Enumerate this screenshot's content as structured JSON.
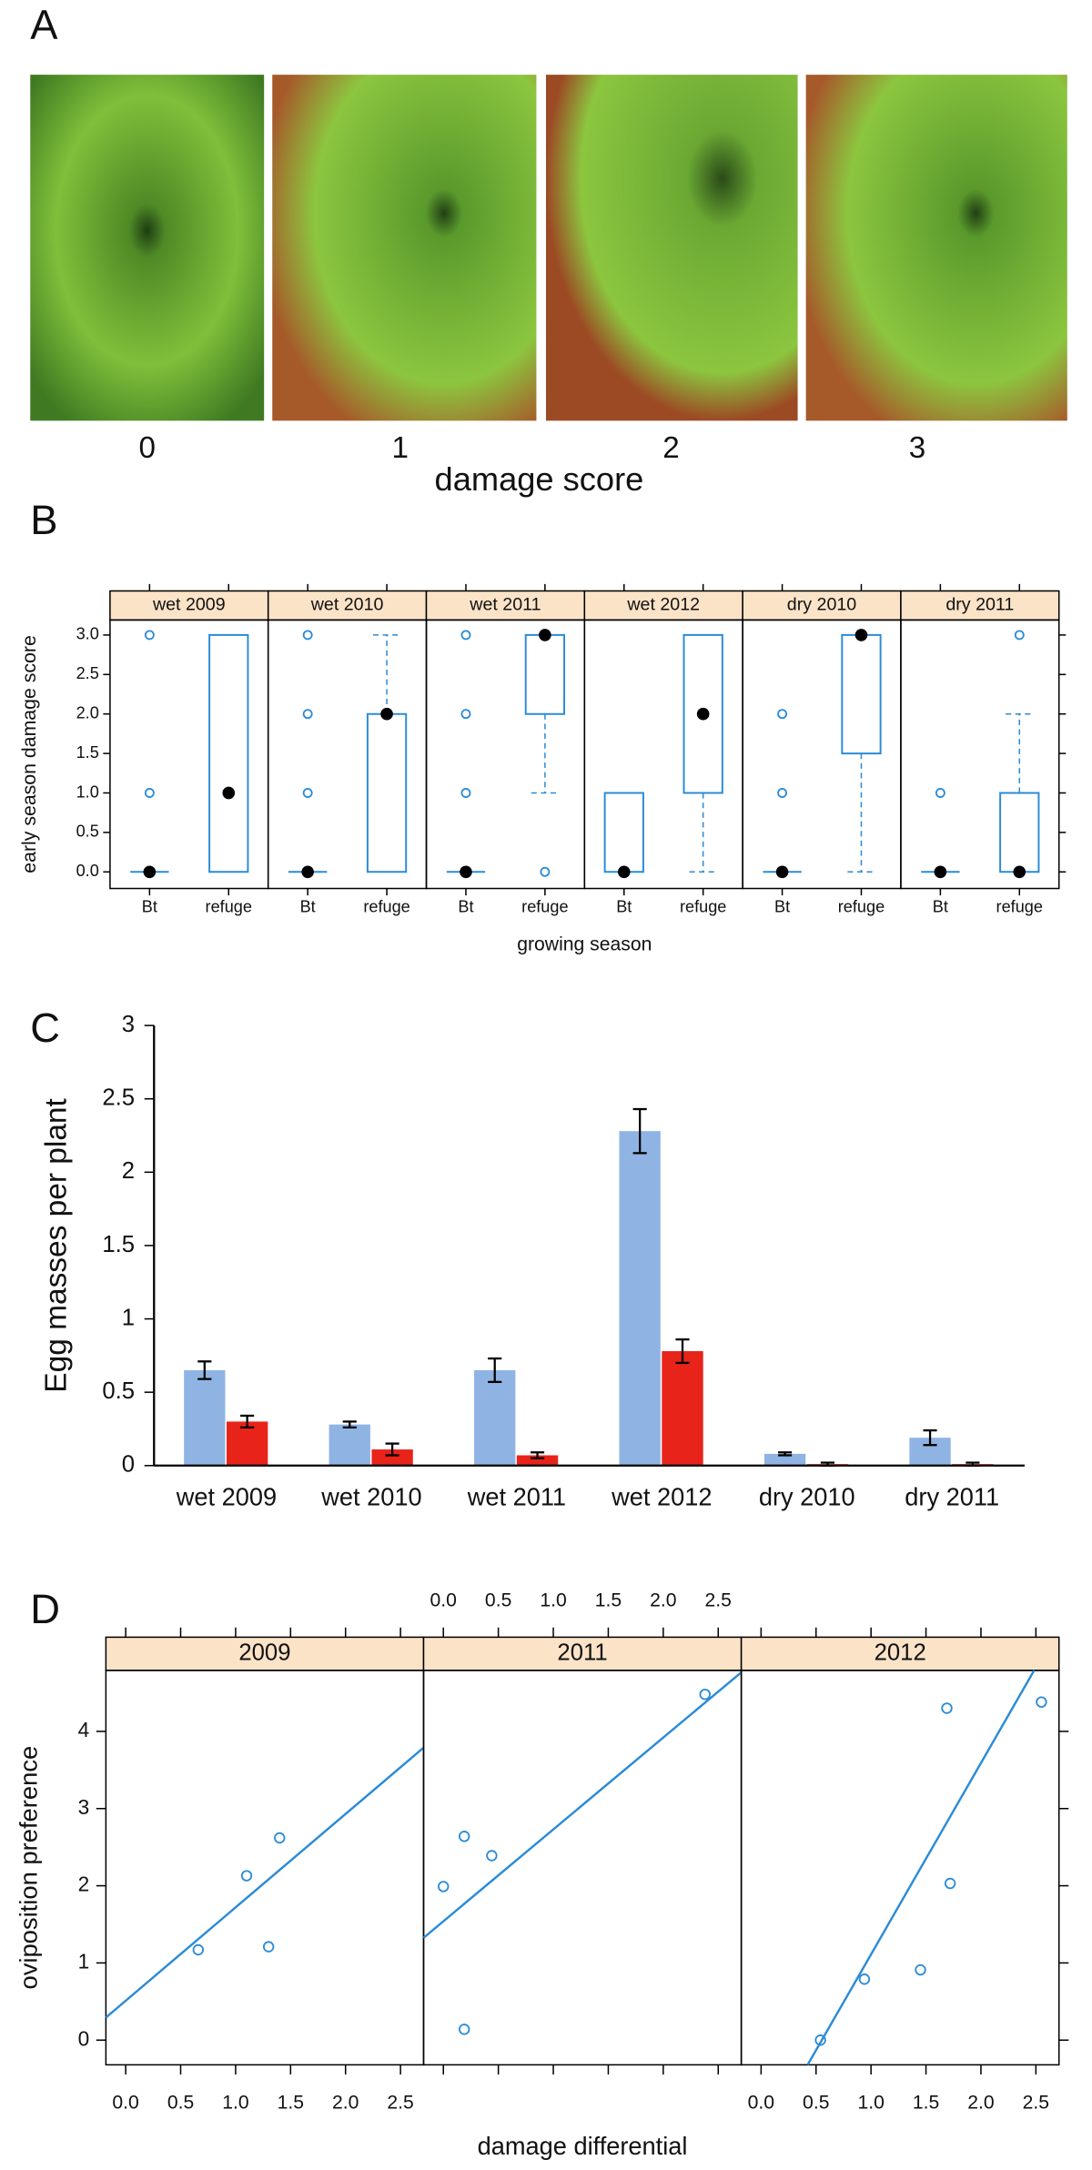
{
  "figure": {
    "panel_label": "A",
    "photo_labels": [
      "0",
      "1",
      "2",
      "3"
    ],
    "xlabel": "damage score"
  },
  "chart_data": [
    {
      "type": "box",
      "panel_label": "B",
      "ylabel": "early season damage score",
      "xlabel": "growing season",
      "color": "#2b8bd6",
      "median_color": "#000000",
      "strip_color": "#fbe3c8",
      "ylim": [
        -0.21,
        3.19
      ],
      "yticks": [
        {
          "value": 0,
          "label": "0.0"
        },
        {
          "value": 0.5,
          "label": "0.5"
        },
        {
          "value": 1,
          "label": "1.0"
        },
        {
          "value": 1.5,
          "label": "1.5"
        },
        {
          "value": 2,
          "label": "2.0"
        },
        {
          "value": 2.5,
          "label": "2.5"
        },
        {
          "value": 3,
          "label": "3.0"
        }
      ],
      "panels": [
        {
          "title": "wet 2009",
          "boxes": [
            {
              "name": "Bt",
              "min": 0,
              "q1": 0,
              "median": 0,
              "q3": 0,
              "max": 0,
              "outliers": [
                1,
                3
              ]
            },
            {
              "name": "refuge",
              "min": 0,
              "q1": 0,
              "median": 1,
              "q3": 3,
              "max": 3,
              "outliers": []
            }
          ]
        },
        {
          "title": "wet 2010",
          "boxes": [
            {
              "name": "Bt",
              "min": 0,
              "q1": 0,
              "median": 0,
              "q3": 0,
              "max": 0,
              "outliers": [
                1,
                2,
                3
              ]
            },
            {
              "name": "refuge",
              "min": 0,
              "q1": 0,
              "median": 2,
              "q3": 2,
              "max": 3,
              "outliers": []
            }
          ]
        },
        {
          "title": "wet 2011",
          "boxes": [
            {
              "name": "Bt",
              "min": 0,
              "q1": 0,
              "median": 0,
              "q3": 0,
              "max": 0,
              "outliers": [
                1,
                2,
                3
              ]
            },
            {
              "name": "refuge",
              "min": 1,
              "q1": 2,
              "median": 3,
              "q3": 3,
              "max": 3,
              "outliers": [
                0
              ]
            }
          ]
        },
        {
          "title": "wet 2012",
          "boxes": [
            {
              "name": "Bt",
              "min": 0,
              "q1": 0,
              "median": 0,
              "q3": 1,
              "max": 1,
              "outliers": []
            },
            {
              "name": "refuge",
              "min": 0,
              "q1": 1,
              "median": 2,
              "q3": 3,
              "max": 3,
              "outliers": []
            }
          ]
        },
        {
          "title": "dry 2010",
          "boxes": [
            {
              "name": "Bt",
              "min": 0,
              "q1": 0,
              "median": 0,
              "q3": 0,
              "max": 0,
              "outliers": [
                1,
                2
              ]
            },
            {
              "name": "refuge",
              "min": 0,
              "q1": 1.5,
              "median": 3,
              "q3": 3,
              "max": 3,
              "outliers": []
            }
          ]
        },
        {
          "title": "dry 2011",
          "boxes": [
            {
              "name": "Bt",
              "min": 0,
              "q1": 0,
              "median": 0,
              "q3": 0,
              "max": 0,
              "outliers": [
                1
              ]
            },
            {
              "name": "refuge",
              "min": 0,
              "q1": 0,
              "median": 0,
              "q3": 1,
              "max": 2,
              "outliers": [
                3
              ]
            }
          ]
        }
      ]
    },
    {
      "type": "bar",
      "panel_label": "C",
      "ylabel": "Egg masses per plant",
      "categories": [
        "wet 2009",
        "wet 2010",
        "wet 2011",
        "wet 2012",
        "dry 2010",
        "dry 2011"
      ],
      "series": [
        {
          "color": "#8fb4e4",
          "values": [
            0.65,
            0.28,
            0.65,
            2.28,
            0.08,
            0.19
          ],
          "errors": [
            0.06,
            0.02,
            0.08,
            0.15,
            0.01,
            0.05
          ]
        },
        {
          "color": "#e8231a",
          "values": [
            0.3,
            0.11,
            0.07,
            0.78,
            0.01,
            0.01
          ],
          "errors": [
            0.04,
            0.04,
            0.02,
            0.08,
            0.01,
            0.01
          ]
        }
      ],
      "ylim": [
        0,
        3
      ],
      "yticks": [
        0,
        0.5,
        1,
        1.5,
        2,
        2.5,
        3
      ]
    },
    {
      "type": "scatter",
      "panel_label": "D",
      "ylabel": "oviposition preference",
      "xlabel": "damage differential",
      "color": "#2b8bd6",
      "strip_color": "#fbe3c8",
      "xlim": [
        -0.18,
        2.71
      ],
      "ylim": [
        -0.32,
        4.79
      ],
      "xticks": [
        {
          "value": 0,
          "label": "0.0"
        },
        {
          "value": 0.5,
          "label": "0.5"
        },
        {
          "value": 1,
          "label": "1.0"
        },
        {
          "value": 1.5,
          "label": "1.5"
        },
        {
          "value": 2,
          "label": "2.0"
        },
        {
          "value": 2.5,
          "label": "2.5"
        }
      ],
      "yticks": [
        0,
        1,
        2,
        3,
        4
      ],
      "panels": [
        {
          "title": "2009",
          "x": [
            0.66,
            1.1,
            1.4,
            1.3
          ],
          "y": [
            1.17,
            2.13,
            2.62,
            1.21
          ],
          "fit": {
            "intercept": 0.51,
            "slope": 1.21
          }
        },
        {
          "title": "2011",
          "x": [
            0.0,
            0.19,
            0.44,
            0.19,
            2.38
          ],
          "y": [
            1.99,
            2.64,
            2.39,
            0.14,
            4.48
          ],
          "fit": {
            "intercept": 1.54,
            "slope": 1.19
          }
        },
        {
          "title": "2012",
          "x": [
            0.54,
            0.94,
            1.45,
            1.69,
            1.72,
            2.55
          ],
          "y": [
            0.0,
            0.79,
            0.91,
            4.3,
            2.03,
            4.38
          ],
          "fit": {
            "intercept": -1.37,
            "slope": 2.48
          }
        }
      ]
    }
  ]
}
